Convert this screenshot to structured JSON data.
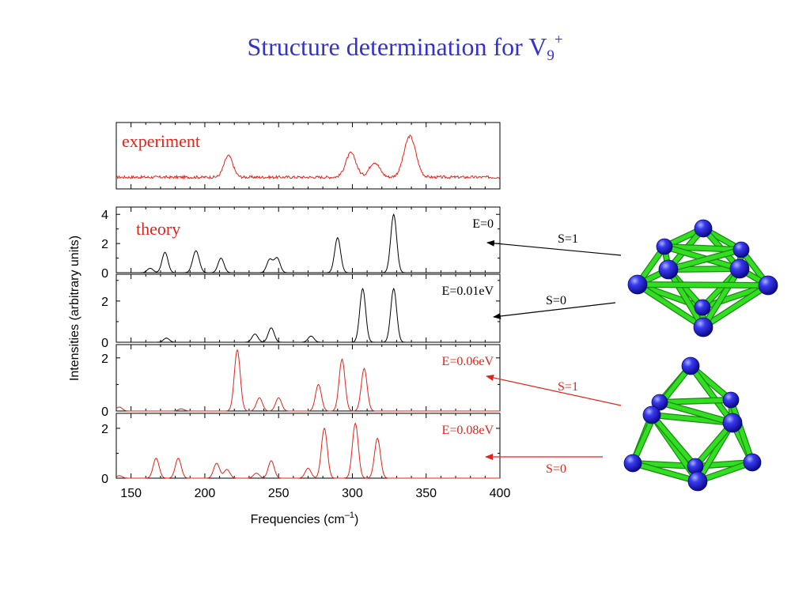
{
  "slide": {
    "title": "Structure determination for V",
    "title_sub": "9",
    "title_sup": "+"
  },
  "colors": {
    "title": "#3333cc",
    "experiment": "#e0241b",
    "theory_ground": "#000000",
    "theory_excited": "#e0241b",
    "atom": "#2b2bd8",
    "bond": "#33dd22"
  },
  "chart_data": {
    "type": "line",
    "xlabel": "Frequencies (cm",
    "xlabel_sup": "–1",
    "xlabel_close": ")",
    "ylabel": "Intensities (arbitrary units)",
    "xlim": [
      140,
      400
    ],
    "x_ticks": [
      "150",
      "200",
      "250",
      "300",
      "350",
      "400"
    ],
    "panels": [
      {
        "label": "experiment",
        "label_color": "#e0241b",
        "line_color": "#e0241b",
        "ylim": [
          -0.3,
          1.4
        ],
        "y_ticks": [],
        "baseline": 0,
        "noise": 0.035,
        "peaks": [
          [
            216,
            0.55,
            3
          ],
          [
            299,
            0.62,
            3.5
          ],
          [
            315,
            0.38,
            3.5
          ],
          [
            339,
            1.05,
            4
          ]
        ]
      },
      {
        "label": "theory",
        "label_color": "#e0241b",
        "energy": "E=0",
        "spin": "S=1",
        "line_color": "#000000",
        "ylim": [
          0,
          4.5
        ],
        "y_ticks": [
          "0",
          "2",
          "4"
        ],
        "peaks": [
          [
            163,
            0.3,
            2
          ],
          [
            173,
            1.4,
            2
          ],
          [
            194,
            1.5,
            2.2
          ],
          [
            211,
            1.0,
            2
          ],
          [
            244,
            0.9,
            2
          ],
          [
            249,
            1.0,
            2
          ],
          [
            290,
            2.4,
            2
          ],
          [
            328,
            4.0,
            2
          ]
        ]
      },
      {
        "energy": "E=0.01eV",
        "spin": "S=0",
        "line_color": "#000000",
        "ylim": [
          0,
          3.3
        ],
        "y_ticks": [
          "0",
          "2"
        ],
        "peaks": [
          [
            174,
            0.2,
            2
          ],
          [
            234,
            0.4,
            2
          ],
          [
            245,
            0.7,
            2
          ],
          [
            272,
            0.3,
            2
          ],
          [
            307,
            2.6,
            2
          ],
          [
            328,
            2.6,
            2
          ]
        ]
      },
      {
        "energy": "E=0.06eV",
        "spin": "S=1",
        "line_color": "#e0241b",
        "ylim": [
          0,
          2.5
        ],
        "y_ticks": [
          "0",
          "2"
        ],
        "peaks": [
          [
            142,
            0.15,
            2
          ],
          [
            184,
            0.08,
            2
          ],
          [
            222,
            2.3,
            2
          ],
          [
            237,
            0.5,
            2
          ],
          [
            250,
            0.5,
            2
          ],
          [
            277,
            1.0,
            2
          ],
          [
            293,
            1.95,
            2
          ],
          [
            308,
            1.6,
            2
          ]
        ]
      },
      {
        "energy": "E=0.08eV",
        "spin": "S=0",
        "line_color": "#e0241b",
        "ylim": [
          0,
          2.6
        ],
        "y_ticks": [
          "0",
          "2"
        ],
        "peaks": [
          [
            142,
            0.1,
            2
          ],
          [
            167,
            0.8,
            2
          ],
          [
            182,
            0.8,
            2
          ],
          [
            208,
            0.6,
            2
          ],
          [
            215,
            0.35,
            2
          ],
          [
            235,
            0.2,
            2
          ],
          [
            245,
            0.7,
            2
          ],
          [
            270,
            0.4,
            2
          ],
          [
            281,
            2.0,
            2
          ],
          [
            302,
            2.2,
            2
          ],
          [
            317,
            1.6,
            2
          ]
        ]
      }
    ],
    "structures": [
      {
        "name": "capped-square-antiprism",
        "spins": [
          "S=1",
          "S=0"
        ],
        "arrow_color": "#000000"
      },
      {
        "name": "tricapped-trigonal-prism",
        "spins": [
          "S=1",
          "S=0"
        ],
        "arrow_color": "#e0241b"
      }
    ]
  }
}
